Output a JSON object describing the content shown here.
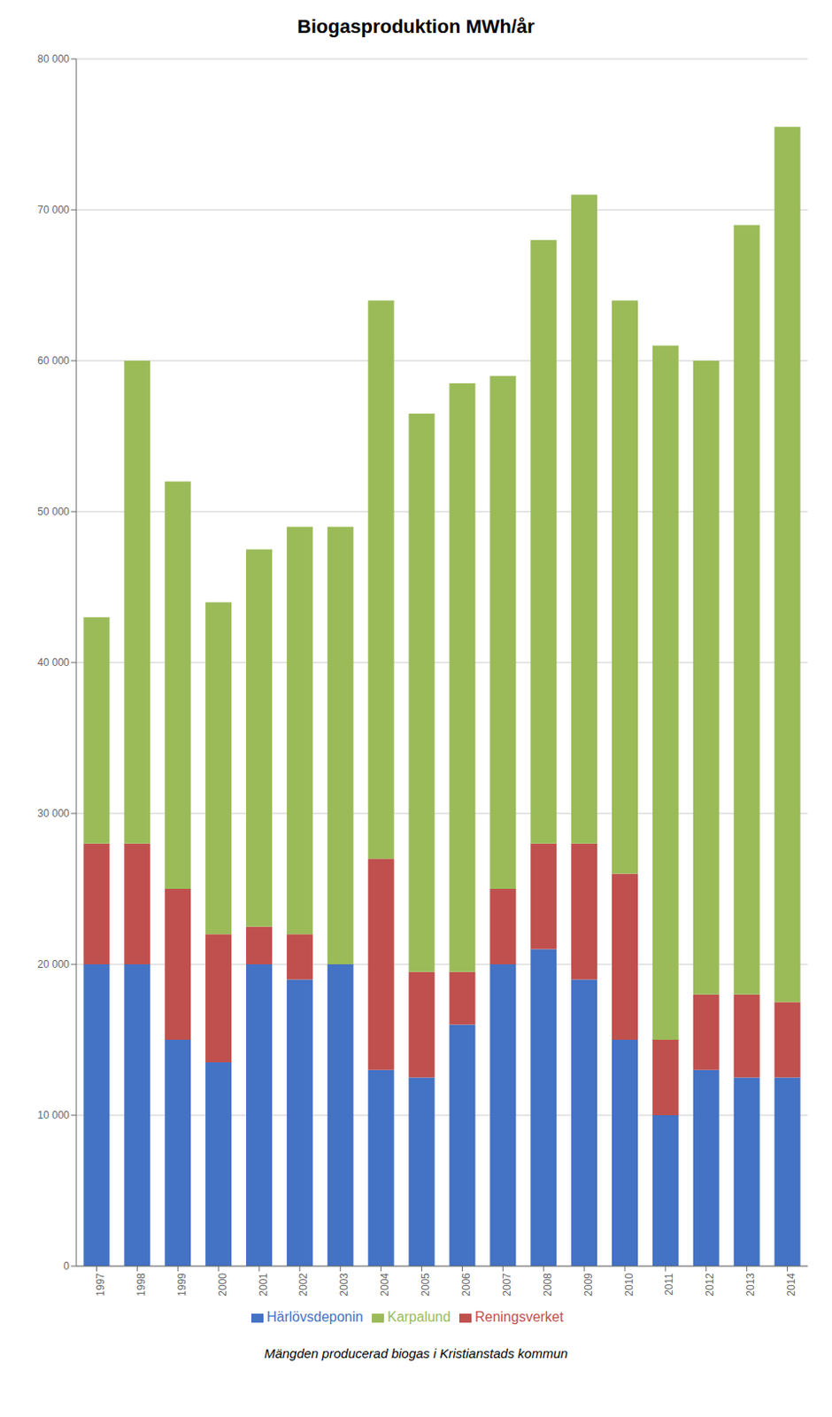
{
  "chart_data": {
    "type": "bar",
    "title": "Biogasproduktion MWh/år",
    "caption": "Mängden producerad biogas i Kristianstads kommun",
    "categories": [
      "1997",
      "1998",
      "1999",
      "2000",
      "2001",
      "2002",
      "2003",
      "2004",
      "2005",
      "2006",
      "2007",
      "2008",
      "2009",
      "2010",
      "2011",
      "2012",
      "2013",
      "2014"
    ],
    "series": [
      {
        "name": "Härlövsdeponin",
        "color": "#4472C4",
        "values": [
          20000,
          20000,
          15000,
          13500,
          20000,
          19000,
          20000,
          13000,
          12500,
          16000,
          20000,
          21000,
          19000,
          15000,
          10000,
          13000,
          12500,
          12500
        ]
      },
      {
        "name": "Reningsverket",
        "color": "#C0504D",
        "values": [
          8000,
          8000,
          10000,
          8500,
          2500,
          3000,
          0,
          14000,
          7000,
          3500,
          5000,
          7000,
          9000,
          11000,
          5000,
          5000,
          5500,
          5000
        ]
      },
      {
        "name": "Karpalund",
        "color": "#9BBB59",
        "values": [
          15000,
          32000,
          27000,
          22000,
          25000,
          27000,
          29000,
          37000,
          37000,
          39000,
          34000,
          40000,
          43000,
          38000,
          46000,
          42000,
          51000,
          58000
        ]
      }
    ],
    "stacked": true,
    "ylim": [
      0,
      80000
    ],
    "yticks": [
      0,
      {
        "value": 10000,
        "label": "10 000"
      },
      {
        "value": 20000,
        "label": "20 000"
      },
      {
        "value": 30000,
        "label": "30 000"
      },
      {
        "value": 40000,
        "label": "40 000"
      },
      {
        "value": 50000,
        "label": "50 000"
      },
      {
        "value": 60000,
        "label": "60 000"
      },
      {
        "value": 70000,
        "label": "70 000"
      },
      {
        "value": 80000,
        "label": "80 000"
      }
    ],
    "grid": true,
    "legend": "bottom"
  }
}
